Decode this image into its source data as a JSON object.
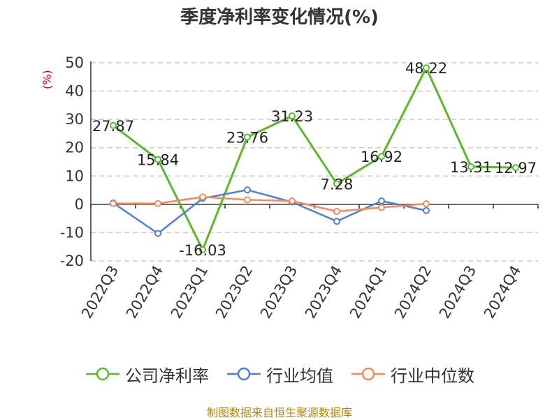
{
  "page": {
    "title": "季度净利率变化情况(%)",
    "source": "制图数据来自恒生聚源数据库"
  },
  "chart_data": {
    "type": "line",
    "title": "季度净利率变化情况(%)",
    "ylabel": "(%)",
    "xlabel": "",
    "categories": [
      "2022Q3",
      "2022Q4",
      "2023Q1",
      "2023Q2",
      "2023Q3",
      "2023Q4",
      "2024Q1",
      "2024Q2",
      "2024Q3",
      "2024Q4"
    ],
    "ylim": [
      -20,
      50
    ],
    "yticks": [
      -20,
      -10,
      0,
      10,
      20,
      30,
      40,
      50
    ],
    "grid": true,
    "legend_position": "bottom",
    "series": [
      {
        "name": "公司净利率",
        "color": "#5cb82b",
        "values": [
          27.87,
          15.84,
          -16.03,
          23.76,
          31.23,
          7.28,
          16.92,
          48.22,
          13.31,
          12.97
        ],
        "labels": [
          "27.87",
          "15.84",
          "-16.03",
          "23.76",
          "31.23",
          "7.28",
          "16.92",
          "48.22",
          "13.31",
          "12.97"
        ]
      },
      {
        "name": "行业均值",
        "color": "#4f7fd8",
        "values": [
          0.5,
          -10.3,
          2.1,
          5.1,
          0.8,
          -6.0,
          1.2,
          -2.2,
          null,
          null
        ]
      },
      {
        "name": "行业中位数",
        "color": "#f28b5a",
        "values": [
          0.3,
          0.3,
          2.6,
          1.6,
          1.2,
          -2.5,
          -1.1,
          0.2,
          null,
          null
        ]
      }
    ]
  }
}
